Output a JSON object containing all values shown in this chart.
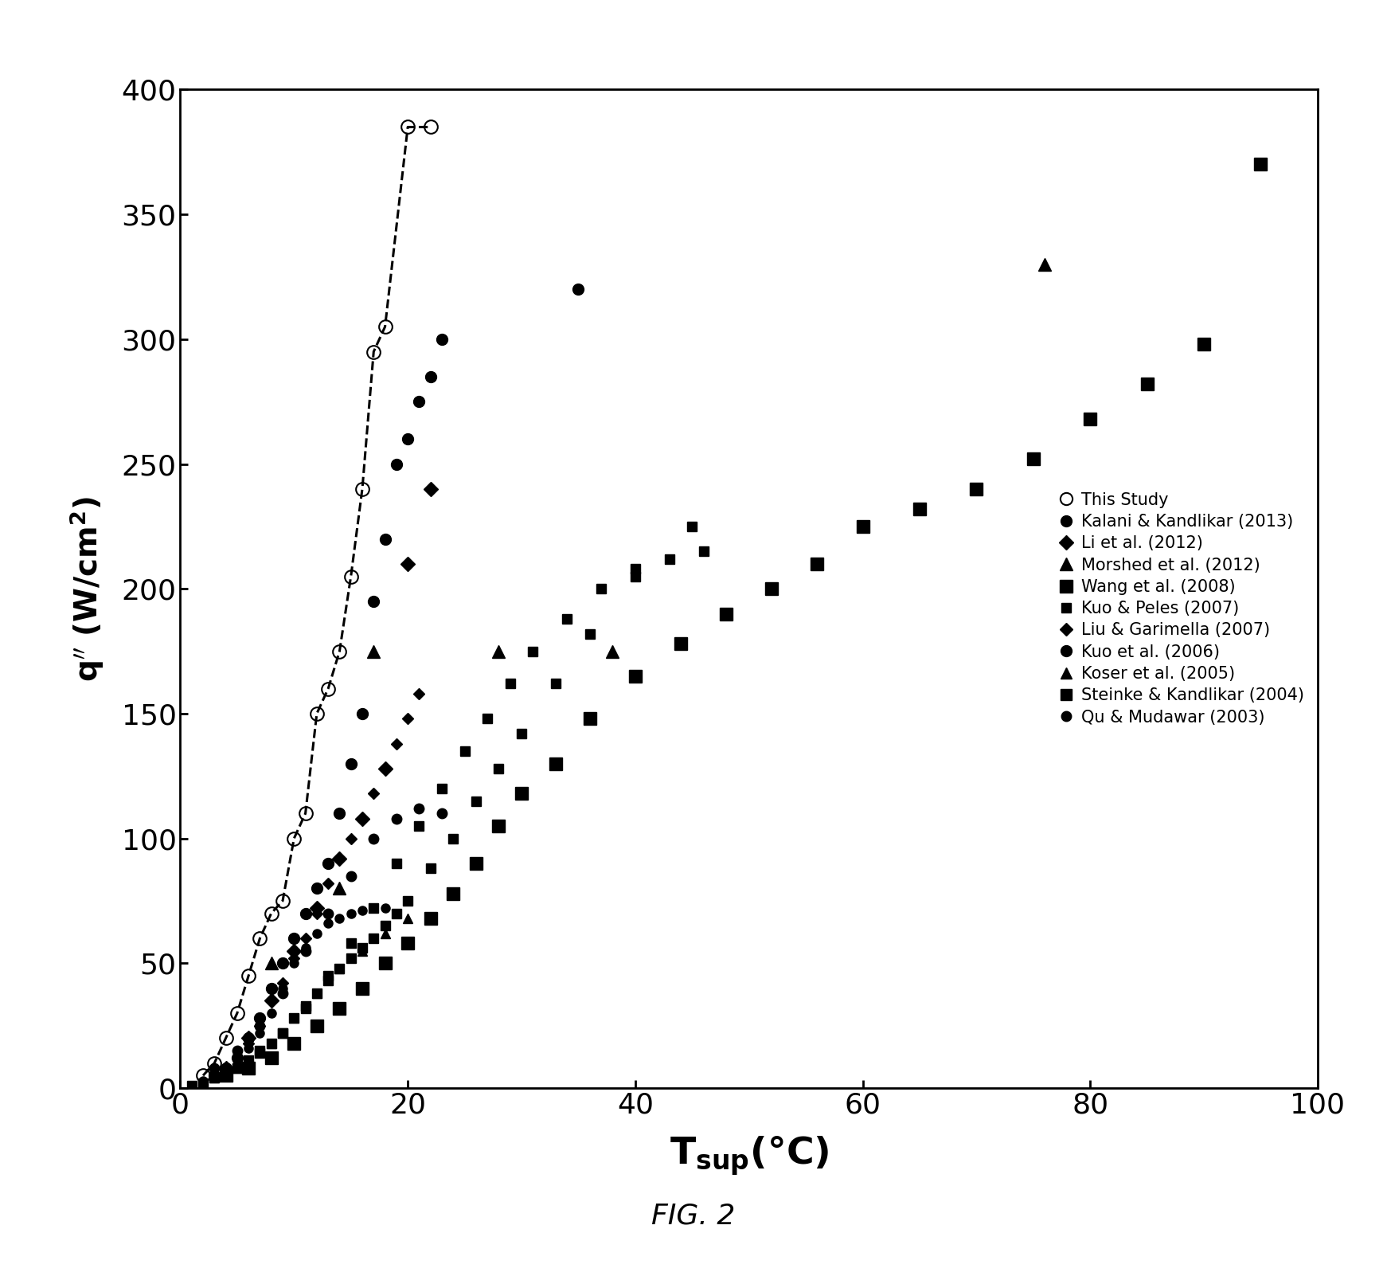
{
  "title": "FIG. 2",
  "xlim": [
    0,
    100
  ],
  "ylim": [
    0,
    400
  ],
  "xticks": [
    0,
    20,
    40,
    60,
    80,
    100
  ],
  "yticks": [
    0,
    50,
    100,
    150,
    200,
    250,
    300,
    350,
    400
  ],
  "this_study": {
    "x": [
      2,
      3,
      4,
      5,
      6,
      7,
      8,
      9,
      10,
      11,
      12,
      13,
      14,
      15,
      16,
      17,
      18,
      20,
      22
    ],
    "y": [
      5,
      10,
      20,
      30,
      45,
      60,
      70,
      75,
      100,
      110,
      150,
      160,
      175,
      205,
      240,
      295,
      305,
      385,
      385
    ],
    "marker": "o",
    "fillstyle": "none",
    "markersize": 12,
    "label": "This Study"
  },
  "dashed_line_x": [
    2,
    3,
    4,
    5,
    6,
    7,
    8,
    9,
    10,
    11,
    12,
    13,
    14,
    15,
    16,
    17,
    18,
    20,
    22
  ],
  "dashed_line_y": [
    5,
    10,
    20,
    30,
    45,
    60,
    70,
    75,
    100,
    110,
    150,
    160,
    175,
    205,
    240,
    295,
    305,
    385,
    385
  ],
  "kalani_kandlikar": {
    "x": [
      3,
      4,
      5,
      6,
      7,
      8,
      9,
      10,
      11,
      12,
      13,
      14,
      15,
      16,
      17,
      18,
      19,
      20,
      21,
      22,
      23,
      35
    ],
    "y": [
      5,
      8,
      12,
      20,
      28,
      40,
      50,
      60,
      70,
      80,
      90,
      110,
      130,
      150,
      195,
      220,
      250,
      260,
      275,
      285,
      300,
      320
    ],
    "marker": "o",
    "markersize": 10,
    "label": "Kalani & Kandlikar (2013)"
  },
  "li_2012": {
    "x": [
      4,
      6,
      8,
      10,
      12,
      14,
      16,
      18,
      20,
      22
    ],
    "y": [
      8,
      20,
      35,
      55,
      72,
      92,
      108,
      128,
      210,
      240
    ],
    "marker": "D",
    "markersize": 9,
    "label": "Li et al. (2012)"
  },
  "morshed_2012": {
    "x": [
      8,
      14,
      17,
      28,
      38,
      76
    ],
    "y": [
      50,
      80,
      175,
      175,
      175,
      330
    ],
    "marker": "^",
    "markersize": 11,
    "label": "Morshed et al. (2012)"
  },
  "wang_2008": {
    "x": [
      4,
      6,
      8,
      10,
      12,
      14,
      16,
      18,
      20,
      22,
      24,
      26,
      28,
      30,
      33,
      36,
      40,
      44,
      48,
      52,
      56,
      60,
      65,
      70,
      75,
      80,
      85,
      90,
      95
    ],
    "y": [
      5,
      8,
      12,
      18,
      25,
      32,
      40,
      50,
      58,
      68,
      78,
      90,
      105,
      118,
      130,
      148,
      165,
      178,
      190,
      200,
      210,
      225,
      232,
      240,
      252,
      268,
      282,
      298,
      370
    ],
    "marker": "s",
    "markersize": 11,
    "label": "Wang et al. (2008)"
  },
  "kuo_peles_2007": {
    "x": [
      3,
      5,
      7,
      9,
      11,
      13,
      15,
      17,
      19,
      21,
      23,
      25,
      27,
      29,
      31,
      34,
      37,
      40,
      43,
      46
    ],
    "y": [
      4,
      8,
      15,
      22,
      32,
      45,
      58,
      72,
      90,
      105,
      120,
      135,
      148,
      162,
      175,
      188,
      200,
      208,
      212,
      215
    ],
    "marker": "s",
    "markersize": 8,
    "label": "Kuo & Peles (2007)"
  },
  "liu_garimella_2007": {
    "x": [
      3,
      4,
      5,
      6,
      7,
      8,
      9,
      10,
      11,
      12,
      13,
      14,
      15,
      16,
      17,
      18,
      19,
      20,
      21
    ],
    "y": [
      5,
      8,
      12,
      18,
      25,
      35,
      42,
      52,
      60,
      70,
      82,
      92,
      100,
      108,
      118,
      128,
      138,
      148,
      158
    ],
    "marker": "D",
    "markersize": 7,
    "label": "Liu & Garimella (2007)"
  },
  "kuo_2006": {
    "x": [
      3,
      5,
      7,
      9,
      11,
      13,
      15,
      17,
      19,
      21,
      23
    ],
    "y": [
      8,
      15,
      25,
      38,
      55,
      70,
      85,
      100,
      108,
      112,
      110
    ],
    "marker": "o",
    "markersize": 9,
    "label": "Kuo et al. (2006)"
  },
  "koser_2005": {
    "x": [
      4,
      6,
      8,
      10,
      12,
      14,
      16,
      18,
      20,
      76
    ],
    "y": [
      5,
      10,
      18,
      28,
      38,
      48,
      55,
      62,
      68,
      330
    ],
    "marker": "^",
    "markersize": 9,
    "label": "Koser et al. (2005)"
  },
  "steinke_kandlikar_2004": {
    "x": [
      1,
      2,
      3,
      4,
      5,
      6,
      7,
      8,
      9,
      10,
      11,
      12,
      13,
      14,
      15,
      16,
      17,
      18,
      19,
      20,
      22,
      24,
      26,
      28,
      30,
      33,
      36,
      40,
      45
    ],
    "y": [
      1,
      2,
      4,
      6,
      8,
      11,
      14,
      18,
      22,
      28,
      33,
      38,
      43,
      48,
      52,
      56,
      60,
      65,
      70,
      75,
      88,
      100,
      115,
      128,
      142,
      162,
      182,
      205,
      225
    ],
    "marker": "s",
    "markersize": 9,
    "label": "Steinke & Kandlikar (2004)"
  },
  "qu_mudawar_2003": {
    "x": [
      2,
      3,
      4,
      5,
      6,
      7,
      8,
      9,
      10,
      11,
      12,
      13,
      14,
      15,
      16,
      17,
      18
    ],
    "y": [
      3,
      5,
      8,
      11,
      16,
      22,
      30,
      40,
      50,
      56,
      62,
      66,
      68,
      70,
      71,
      72,
      72
    ],
    "marker": "o",
    "markersize": 8,
    "label": "Qu & Mudawar (2003)"
  },
  "legend_fontsize": 15,
  "tick_labelsize": 26,
  "xlabel_fontsize": 34,
  "ylabel_fontsize": 28,
  "caption_fontsize": 26
}
